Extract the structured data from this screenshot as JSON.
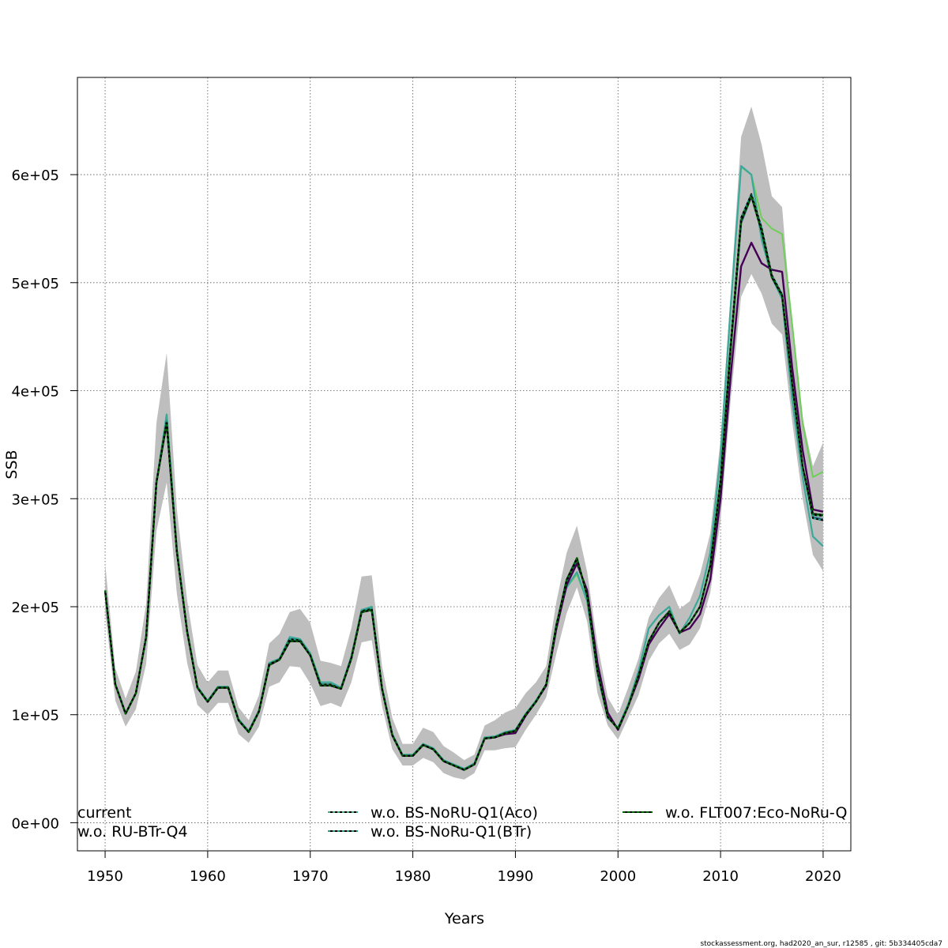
{
  "chart_data": {
    "type": "line",
    "title": "",
    "xlabel": "Years",
    "ylabel": "SSB",
    "xlim": [
      1947.3,
      2022.7
    ],
    "ylim": [
      -26000,
      690000
    ],
    "x_ticks": [
      1950,
      1960,
      1970,
      1980,
      1990,
      2000,
      2010,
      2020
    ],
    "x_tick_labels": [
      "1950",
      "1960",
      "1970",
      "1980",
      "1990",
      "2000",
      "2010",
      "2020"
    ],
    "y_ticks": [
      0,
      100000,
      200000,
      300000,
      400000,
      500000,
      600000
    ],
    "y_tick_labels": [
      "0e+00",
      "1e+05",
      "2e+05",
      "3e+05",
      "4e+05",
      "5e+05",
      "6e+05"
    ],
    "grid": true,
    "legend_placement": "bottom",
    "footer": "stockassessment.org, had2020_an_sur, r12585 , git: 5b334405cda7",
    "x_start": 1950,
    "band": {
      "color": "#bebebe",
      "lower": [
        195000,
        113000,
        89000,
        105000,
        147000,
        270000,
        315000,
        212000,
        148000,
        109000,
        100000,
        111000,
        111000,
        82000,
        74000,
        89000,
        126000,
        130000,
        145000,
        144000,
        129000,
        108000,
        111000,
        107000,
        130000,
        167000,
        169000,
        108000,
        68000,
        53000,
        53000,
        60000,
        56000,
        46000,
        42000,
        40000,
        46000,
        67000,
        67000,
        69000,
        70000,
        86000,
        100000,
        116000,
        157000,
        194000,
        218000,
        186000,
        120000,
        90000,
        77000,
        97000,
        118000,
        150000,
        166000,
        175000,
        160000,
        165000,
        180000,
        213000,
        280000,
        393000,
        487000,
        508000,
        490000,
        462000,
        452000,
        370000,
        300000,
        248000,
        233000
      ],
      "upper": [
        240000,
        143000,
        115000,
        140000,
        203000,
        370000,
        435000,
        290000,
        206000,
        146000,
        130000,
        141000,
        141000,
        107000,
        95000,
        118000,
        166000,
        175000,
        195000,
        198000,
        185000,
        150000,
        148000,
        145000,
        180000,
        228000,
        229000,
        145000,
        97000,
        73000,
        73000,
        88000,
        84000,
        71000,
        65000,
        58000,
        63000,
        90000,
        95000,
        102000,
        106000,
        120000,
        130000,
        145000,
        205000,
        250000,
        275000,
        232000,
        165000,
        116000,
        100000,
        125000,
        152000,
        190000,
        208000,
        220000,
        198000,
        205000,
        230000,
        268000,
        355000,
        490000,
        635000,
        663000,
        628000,
        580000,
        570000,
        455000,
        375000,
        330000,
        352000
      ]
    },
    "series": [
      {
        "name": "current",
        "color": "#31688e",
        "dashed": false,
        "width": 2.4,
        "values": [
          215000,
          128000,
          101000,
          120000,
          172000,
          315000,
          370000,
          251000,
          177000,
          125000,
          112000,
          125000,
          125000,
          95000,
          84000,
          103000,
          146000,
          151000,
          168000,
          168000,
          155000,
          127000,
          127000,
          124000,
          152000,
          195000,
          197000,
          124000,
          81000,
          62000,
          62000,
          72000,
          68000,
          57000,
          53000,
          49000,
          54000,
          78000,
          79000,
          83000,
          85000,
          100000,
          112000,
          128000,
          183000,
          225000,
          245000,
          210000,
          140000,
          98000,
          87000,
          108000,
          136000,
          168000,
          185000,
          195000,
          176000,
          185000,
          200000,
          238000,
          315000,
          440000,
          555000,
          580000,
          548000,
          505000,
          488000,
          405000,
          330000,
          283000,
          281000
        ]
      },
      {
        "name": "w.o. RU-BTr-Q4",
        "color": "#440154",
        "dashed": false,
        "width": 2.4,
        "values": [
          215000,
          128000,
          101000,
          120000,
          172000,
          315000,
          370000,
          251000,
          177000,
          125000,
          112000,
          125000,
          125000,
          95000,
          84000,
          103000,
          146000,
          151000,
          168000,
          168000,
          155000,
          127000,
          127000,
          124000,
          152000,
          195000,
          197000,
          124000,
          81000,
          62000,
          62000,
          72000,
          68000,
          57000,
          53000,
          49000,
          54000,
          78000,
          79000,
          82000,
          83000,
          99000,
          112000,
          127000,
          180000,
          220000,
          240000,
          215000,
          148000,
          102000,
          86000,
          108000,
          133000,
          165000,
          180000,
          193000,
          176000,
          180000,
          193000,
          225000,
          300000,
          415000,
          515000,
          537000,
          518000,
          512000,
          510000,
          420000,
          345000,
          290000,
          288000
        ]
      },
      {
        "name": "w.o. BS-NoRU-Q1(Aco)",
        "color": "#35b779",
        "dashed": true,
        "width": 2.0,
        "values": [
          215000,
          128000,
          101000,
          120000,
          172000,
          315000,
          372000,
          251000,
          177000,
          125000,
          112000,
          125000,
          125000,
          95000,
          84000,
          103000,
          147000,
          151000,
          170000,
          169000,
          155000,
          128000,
          128000,
          124000,
          153000,
          196000,
          198000,
          124000,
          81000,
          62000,
          62000,
          72000,
          68000,
          57000,
          53000,
          49000,
          54000,
          78000,
          79000,
          83000,
          85000,
          100000,
          112000,
          128000,
          183000,
          224000,
          244000,
          210000,
          141000,
          98000,
          87000,
          108000,
          136000,
          168000,
          185000,
          196000,
          176000,
          185000,
          200000,
          238000,
          318000,
          445000,
          560000,
          582000,
          551000,
          507000,
          489000,
          405000,
          330000,
          285000,
          284000
        ]
      },
      {
        "name": "w.o. BS-NoRu-Q1(BTr)",
        "color": "#1f9e89",
        "dashed": true,
        "width": 2.0,
        "values": [
          215000,
          128000,
          101000,
          120000,
          172000,
          315000,
          372000,
          251000,
          177000,
          125000,
          112000,
          125000,
          125000,
          95000,
          84000,
          103000,
          147000,
          151000,
          170000,
          169000,
          155000,
          128000,
          128000,
          124000,
          153000,
          196000,
          198000,
          124000,
          81000,
          62000,
          62000,
          72000,
          68000,
          57000,
          53000,
          49000,
          54000,
          78000,
          79000,
          83000,
          85000,
          100000,
          112000,
          128000,
          183000,
          224000,
          244000,
          210000,
          141000,
          98000,
          87000,
          108000,
          136000,
          168000,
          185000,
          196000,
          176000,
          185000,
          200000,
          238000,
          318000,
          445000,
          560000,
          582000,
          551000,
          507000,
          489000,
          405000,
          330000,
          282000,
          280000
        ]
      },
      {
        "name": "w.o. FLT007:Eco-NoRu-Q",
        "color": "#006400",
        "dashed": true,
        "width": 2.2,
        "values": [
          215000,
          128000,
          101000,
          120000,
          172000,
          315000,
          370000,
          251000,
          177000,
          125000,
          112000,
          125000,
          125000,
          95000,
          84000,
          103000,
          146000,
          151000,
          168000,
          168000,
          155000,
          127000,
          127000,
          124000,
          152000,
          195000,
          197000,
          124000,
          81000,
          62000,
          62000,
          72000,
          68000,
          57000,
          53000,
          49000,
          54000,
          78000,
          79000,
          83000,
          85000,
          100000,
          112000,
          128000,
          183000,
          225000,
          245000,
          210000,
          140000,
          98000,
          87000,
          108000,
          136000,
          168000,
          185000,
          195000,
          176000,
          185000,
          200000,
          238000,
          315000,
          440000,
          557000,
          580000,
          548000,
          505000,
          488000,
          405000,
          330000,
          286000,
          285000
        ]
      },
      {
        "name": "",
        "color": "#6ece58",
        "dashed": false,
        "width": 2.0,
        "values": [
          215000,
          128000,
          101000,
          120000,
          172000,
          315000,
          378000,
          253000,
          178000,
          126000,
          113000,
          126000,
          126000,
          96000,
          85000,
          104000,
          148000,
          152000,
          172000,
          170000,
          157000,
          130000,
          130000,
          125000,
          154000,
          197000,
          200000,
          125000,
          82000,
          63000,
          63000,
          73000,
          69000,
          58000,
          54000,
          50000,
          55000,
          79000,
          80000,
          84000,
          86000,
          101000,
          113000,
          128000,
          185000,
          218000,
          230000,
          205000,
          138000,
          97000,
          88000,
          110000,
          140000,
          180000,
          192000,
          200000,
          175000,
          190000,
          210000,
          250000,
          340000,
          480000,
          607000,
          600000,
          560000,
          550000,
          545000,
          460000,
          370000,
          320000,
          325000
        ]
      },
      {
        "name": "",
        "color": "#3aa89b",
        "dashed": false,
        "width": 2.2,
        "values": [
          215000,
          128000,
          101000,
          120000,
          172000,
          315000,
          378000,
          253000,
          178000,
          126000,
          113000,
          126000,
          126000,
          96000,
          85000,
          104000,
          148000,
          152000,
          172000,
          170000,
          157000,
          130000,
          130000,
          125000,
          154000,
          197000,
          200000,
          125000,
          82000,
          63000,
          63000,
          73000,
          69000,
          58000,
          54000,
          50000,
          55000,
          79000,
          80000,
          84000,
          86000,
          101000,
          113000,
          128000,
          185000,
          218000,
          232000,
          205000,
          138000,
          97000,
          88000,
          110000,
          140000,
          180000,
          192000,
          200000,
          175000,
          190000,
          210000,
          250000,
          340000,
          480000,
          608000,
          600000,
          540000,
          505000,
          485000,
          390000,
          320000,
          265000,
          256000
        ]
      }
    ],
    "legend": [
      {
        "label": "current",
        "color": "#31688e",
        "dashed": false
      },
      {
        "label": "w.o. RU-BTr-Q4",
        "color": "#440154",
        "dashed": false
      },
      {
        "label": "w.o. BS-NoRU-Q1(Aco)",
        "color": "#35b779",
        "dashed": true
      },
      {
        "label": "w.o. BS-NoRu-Q1(BTr)",
        "color": "#1f9e89",
        "dashed": true
      },
      {
        "label": "w.o. FLT007:Eco-NoRu-Q",
        "color": "#006400",
        "dashed": true
      }
    ]
  }
}
